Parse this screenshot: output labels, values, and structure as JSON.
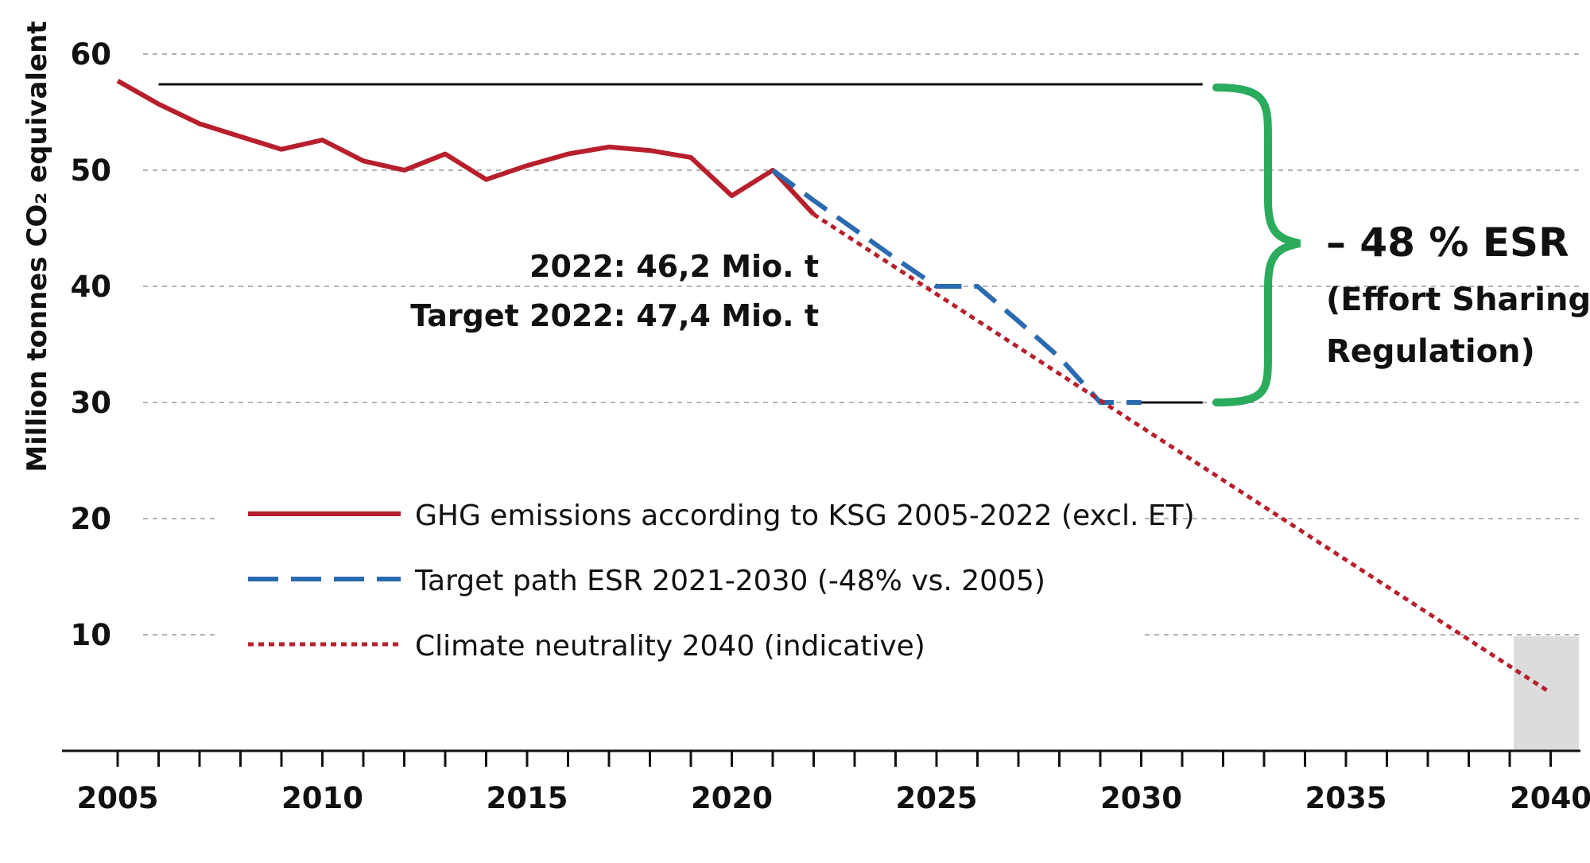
{
  "chart_data": {
    "type": "line",
    "ylabel": "Million tonnes CO₂ equivalent",
    "xlim": [
      2005,
      2040
    ],
    "ylim": [
      0,
      60
    ],
    "x_ticks": [
      "2005",
      "2010",
      "2015",
      "2020",
      "2025",
      "2030",
      "2035",
      "2040"
    ],
    "y_ticks": [
      "10",
      "20",
      "30",
      "40",
      "50",
      "60"
    ],
    "grid": "horizontal dashed",
    "legend_position": "center-left",
    "series": [
      {
        "name": "GHG emissions according to KSG 2005-2022 (excl. ET)",
        "style": "solid",
        "color": "#b81f2c",
        "x": [
          2005,
          2006,
          2007,
          2008,
          2009,
          2010,
          2011,
          2012,
          2013,
          2014,
          2015,
          2016,
          2017,
          2018,
          2019,
          2020,
          2021,
          2022
        ],
        "y": [
          57.7,
          55.7,
          54.0,
          52.9,
          51.8,
          52.6,
          50.8,
          50.0,
          51.4,
          49.2,
          50.4,
          51.4,
          52.0,
          51.7,
          51.1,
          47.8,
          50.0,
          46.2
        ]
      },
      {
        "name": "Target path ESR 2021-2030 (-48% vs. 2005)",
        "style": "dashed",
        "color": "#2a6ab0",
        "x": [
          2021,
          2022,
          2023,
          2024,
          2025,
          2026,
          2027,
          2028,
          2029,
          2030
        ],
        "y": [
          50.0,
          47.4,
          44.9,
          42.4,
          40.0,
          40.0,
          37.0,
          33.9,
          30.0,
          30.0
        ]
      },
      {
        "name": "Climate neutrality 2040 (indicative)",
        "style": "dotted",
        "color": "#b81f2c",
        "x": [
          2022,
          2040
        ],
        "y": [
          46.2,
          5.0
        ]
      }
    ],
    "reference_lines": [
      {
        "y": 57.4,
        "x": [
          2006,
          2031.5
        ]
      },
      {
        "y": 30.0,
        "x": [
          2030,
          2031.5
        ]
      }
    ],
    "annotations": {
      "line1": "2022: 46,2 Mio. t",
      "line2": "Target 2022: 47,4 Mio. t",
      "esr_main": "– 48 % ESR",
      "esr_sub1": "(Effort Sharing",
      "esr_sub2": "Regulation)"
    },
    "colors": {
      "emissions": "#b81f2c",
      "target": "#2a6ab0",
      "neutrality": "#b81f2c",
      "brace": "#2bab5c",
      "neutral_zone": "#dcdcdc"
    }
  }
}
